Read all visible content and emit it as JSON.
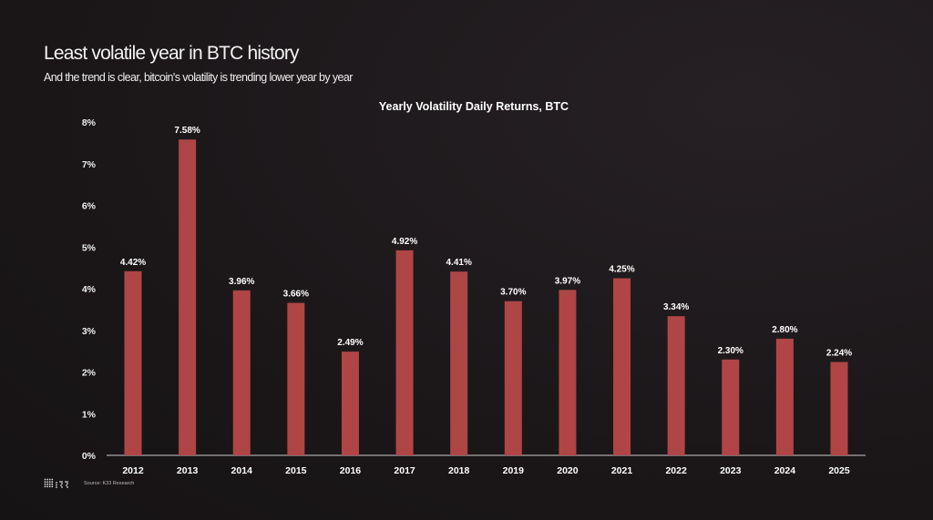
{
  "header": {
    "title": "Least volatile year in BTC history",
    "subtitle": "And the trend is clear, bitcoin's volatility is trending lower year by year"
  },
  "footer": {
    "logo_text": "K33",
    "source": "Source: K33 Research"
  },
  "chart_data": {
    "type": "bar",
    "title": "Yearly Volatility Daily Returns, BTC",
    "xlabel": "",
    "ylabel": "",
    "categories": [
      "2012",
      "2013",
      "2014",
      "2015",
      "2016",
      "2017",
      "2018",
      "2019",
      "2020",
      "2021",
      "2022",
      "2023",
      "2024",
      "2025"
    ],
    "values": [
      4.42,
      7.58,
      3.96,
      3.66,
      2.49,
      4.92,
      4.41,
      3.7,
      3.97,
      4.25,
      3.34,
      2.3,
      2.8,
      2.24
    ],
    "data_labels": [
      "4.42%",
      "7.58%",
      "3.96%",
      "3.66%",
      "2.49%",
      "4.92%",
      "4.41%",
      "3.70%",
      "3.97%",
      "4.25%",
      "3.34%",
      "2.30%",
      "2.80%",
      "2.24%"
    ],
    "y_ticks": [
      "0%",
      "1%",
      "2%",
      "3%",
      "4%",
      "5%",
      "6%",
      "7%",
      "8%"
    ],
    "ylim": [
      0,
      8
    ],
    "grid": false,
    "bar_color": "#b04546"
  }
}
